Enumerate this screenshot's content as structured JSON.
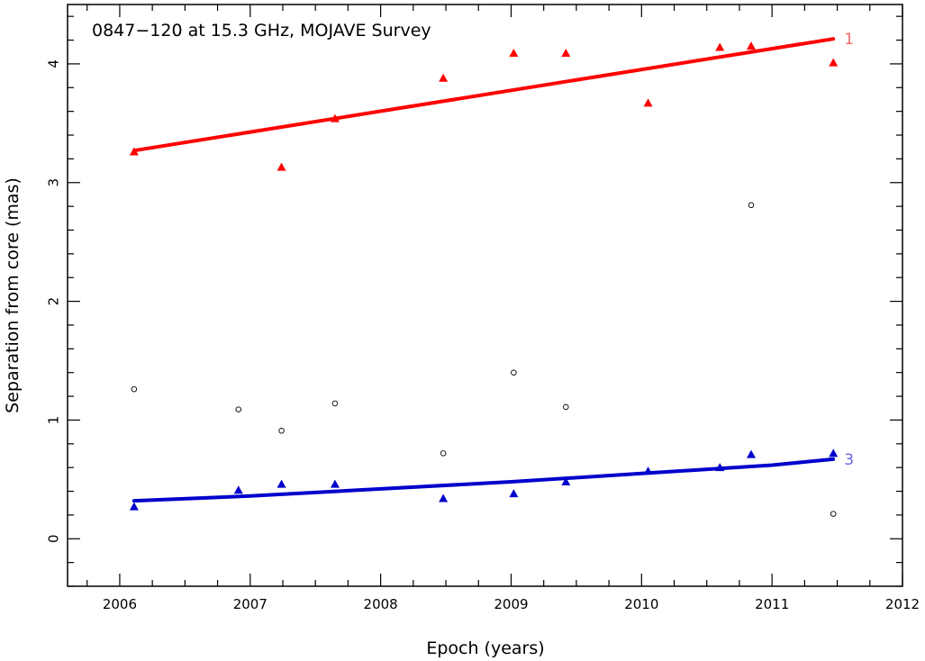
{
  "chart_data": {
    "type": "scatter",
    "title": "0847−120 at 15.3 GHz, MOJAVE Survey",
    "xlabel": "Epoch (years)",
    "ylabel": "Separation from core (mas)",
    "xlim": [
      2005.6,
      2012.0
    ],
    "ylim": [
      -0.4,
      4.5
    ],
    "x_ticks": [
      "2006",
      "2007",
      "2008",
      "2009",
      "2010",
      "2011",
      "2012"
    ],
    "y_ticks": [
      "0",
      "1",
      "2",
      "3",
      "4"
    ],
    "grid": false,
    "series": [
      {
        "name": "1",
        "color": "#ff0000",
        "marker": "triangle",
        "points": [
          [
            2006.11,
            3.26
          ],
          [
            2007.24,
            3.13
          ],
          [
            2007.65,
            3.54
          ],
          [
            2008.48,
            3.88
          ],
          [
            2009.02,
            4.09
          ],
          [
            2009.42,
            4.09
          ],
          [
            2010.05,
            3.67
          ],
          [
            2010.6,
            4.14
          ],
          [
            2010.84,
            4.15
          ],
          [
            2011.47,
            4.01
          ]
        ],
        "fit": [
          [
            2006.11,
            3.27
          ],
          [
            2011.47,
            4.21
          ]
        ]
      },
      {
        "name": "3",
        "color": "#0000cc",
        "marker": "triangle",
        "points": [
          [
            2006.11,
            0.27
          ],
          [
            2006.91,
            0.41
          ],
          [
            2007.24,
            0.46
          ],
          [
            2007.65,
            0.46
          ],
          [
            2008.48,
            0.34
          ],
          [
            2009.02,
            0.38
          ],
          [
            2009.42,
            0.48
          ],
          [
            2010.05,
            0.57
          ],
          [
            2010.6,
            0.6
          ],
          [
            2010.84,
            0.71
          ],
          [
            2011.47,
            0.72
          ]
        ],
        "fit": [
          [
            2006.11,
            0.32
          ],
          [
            2007.0,
            0.36
          ],
          [
            2008.0,
            0.42
          ],
          [
            2009.0,
            0.48
          ],
          [
            2010.0,
            0.55
          ],
          [
            2011.0,
            0.62
          ],
          [
            2011.47,
            0.67
          ]
        ]
      },
      {
        "color": "#000000",
        "marker": "open-circle",
        "points": [
          [
            2006.11,
            1.26
          ],
          [
            2006.91,
            1.09
          ],
          [
            2007.24,
            0.91
          ],
          [
            2007.65,
            1.14
          ],
          [
            2008.48,
            0.72
          ],
          [
            2009.02,
            1.4
          ],
          [
            2009.42,
            1.11
          ],
          [
            2010.84,
            2.81
          ],
          [
            2011.47,
            0.21
          ]
        ]
      }
    ]
  }
}
